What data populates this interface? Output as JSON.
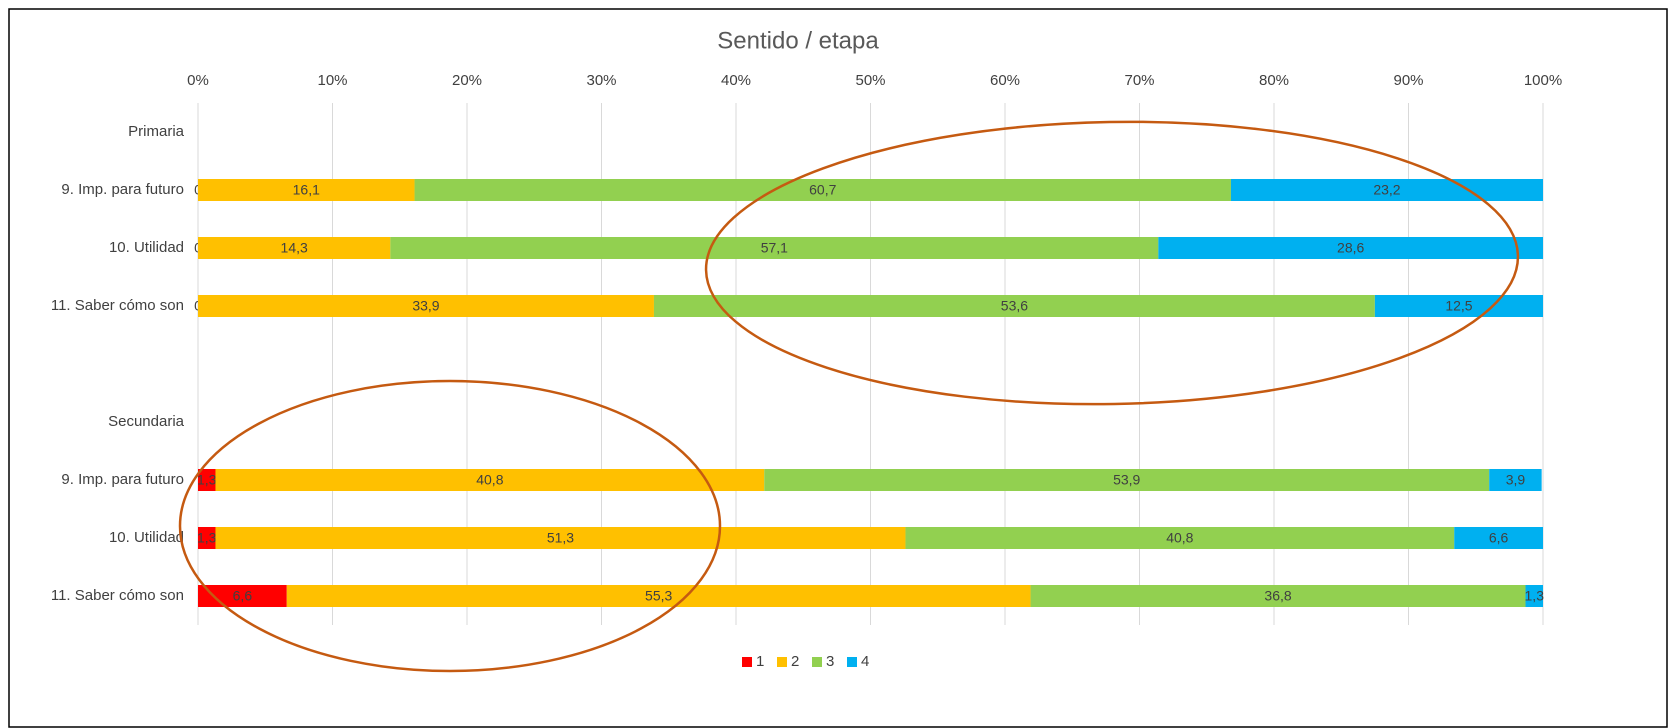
{
  "chart_data": {
    "type": "stacked_barh",
    "title": "Sentido / etapa",
    "categories": [
      "Primaria",
      "9. Imp. para futuro",
      "10. Utilidad",
      "11. Saber cómo son",
      null,
      "Secundaria",
      "9. Imp. para futuro",
      "10. Utilidad",
      "11. Saber cómo son"
    ],
    "series": [
      {
        "name": "1",
        "color": "#ff0000",
        "values": [
          null,
          0,
          0,
          0,
          null,
          null,
          1.3,
          1.3,
          6.6
        ],
        "value_labels": [
          null,
          "0",
          "0",
          "0",
          null,
          null,
          "1,3",
          "1,3",
          "6,6"
        ]
      },
      {
        "name": "2",
        "color": "#ffc000",
        "values": [
          null,
          16.1,
          14.3,
          33.9,
          null,
          null,
          40.8,
          51.3,
          55.3
        ],
        "value_labels": [
          null,
          "16,1",
          "14,3",
          "33,9",
          null,
          null,
          "40,8",
          "51,3",
          "55,3"
        ]
      },
      {
        "name": "3",
        "color": "#92d050",
        "values": [
          null,
          60.7,
          57.1,
          53.6,
          null,
          null,
          53.9,
          40.8,
          36.8
        ],
        "value_labels": [
          null,
          "60,7",
          "57,1",
          "53,6",
          null,
          null,
          "53,9",
          "40,8",
          "36,8"
        ]
      },
      {
        "name": "4",
        "color": "#00b0f0",
        "values": [
          null,
          23.2,
          28.6,
          12.5,
          null,
          null,
          3.9,
          6.6,
          1.3
        ],
        "value_labels": [
          null,
          "23,2",
          "28,6",
          "12,5",
          null,
          null,
          "3,9",
          "6,6",
          "1,3"
        ]
      }
    ],
    "xlim": [
      0,
      100
    ],
    "xticks": [
      {
        "value": 0,
        "label": "0%"
      },
      {
        "value": 10,
        "label": "10%"
      },
      {
        "value": 20,
        "label": "20%"
      },
      {
        "value": 30,
        "label": "30%"
      },
      {
        "value": 40,
        "label": "40%"
      },
      {
        "value": 50,
        "label": "50%"
      },
      {
        "value": 60,
        "label": "60%"
      },
      {
        "value": 70,
        "label": "70%"
      },
      {
        "value": 80,
        "label": "80%"
      },
      {
        "value": 90,
        "label": "90%"
      },
      {
        "value": 100,
        "label": "100%"
      }
    ],
    "grid": true,
    "legend": "bottom"
  }
}
